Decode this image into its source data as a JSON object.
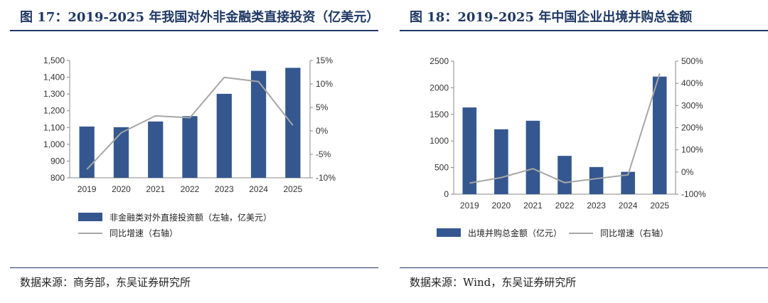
{
  "left": {
    "title": "图 17：2019-2025 年我国对外非金融类直接投资（亿美元）",
    "source_label": "数据来源：",
    "source_text": "商务部，东吴证券研究所",
    "chart_data": {
      "type": "bar",
      "categories": [
        "2019",
        "2020",
        "2021",
        "2022",
        "2023",
        "2024",
        "2025"
      ],
      "series": [
        {
          "name": "非金融类对外直接投资额（左轴，亿美元）",
          "type": "bar",
          "axis": "left",
          "color": "#34578f",
          "values": [
            1106,
            1102,
            1136,
            1168,
            1301,
            1438,
            1456
          ]
        },
        {
          "name": "同比增速（右轴）",
          "type": "line",
          "axis": "right",
          "color": "#a6a6a6",
          "values": [
            -8.2,
            -0.4,
            3.2,
            2.8,
            11.4,
            10.5,
            1.2
          ]
        }
      ],
      "y_left": {
        "min": 800,
        "max": 1500,
        "step": 100,
        "ticks": [
          "800",
          "900",
          "1,000",
          "1,100",
          "1,200",
          "1,300",
          "1,400",
          "1,500"
        ]
      },
      "y_right": {
        "min": -10,
        "max": 15,
        "step": 5,
        "ticks": [
          "-10%",
          "-5%",
          "0%",
          "5%",
          "10%",
          "15%"
        ]
      },
      "legend": [
        "非金融类对外直接投资额（左轴，亿美元）",
        "同比增速（右轴）"
      ]
    }
  },
  "right": {
    "title": "图 18：2019-2025 年中国企业出境并购总金额",
    "source_label": "数据来源：",
    "source_text": "Wind，东吴证券研究所",
    "chart_data": {
      "type": "bar",
      "categories": [
        "2019",
        "2020",
        "2021",
        "2022",
        "2023",
        "2024",
        "2025"
      ],
      "series": [
        {
          "name": "出境并购总金额（亿元）",
          "type": "bar",
          "axis": "left",
          "color": "#34578f",
          "values": [
            1630,
            1220,
            1380,
            720,
            510,
            420,
            2210
          ]
        },
        {
          "name": "同比增速（右轴）",
          "type": "line",
          "axis": "right",
          "color": "#a6a6a6",
          "values": [
            -50,
            -25,
            15,
            -48,
            -30,
            -13,
            445
          ]
        }
      ],
      "y_left": {
        "min": 0,
        "max": 2500,
        "step": 500,
        "ticks": [
          "0",
          "500",
          "1000",
          "1500",
          "2000",
          "2500"
        ]
      },
      "y_right": {
        "min": -100,
        "max": 500,
        "step": 100,
        "ticks": [
          "-100%",
          "0%",
          "100%",
          "200%",
          "300%",
          "400%",
          "500%"
        ]
      },
      "legend": [
        "出境并购总金额（亿元）",
        "同比增速（右轴）"
      ]
    }
  }
}
